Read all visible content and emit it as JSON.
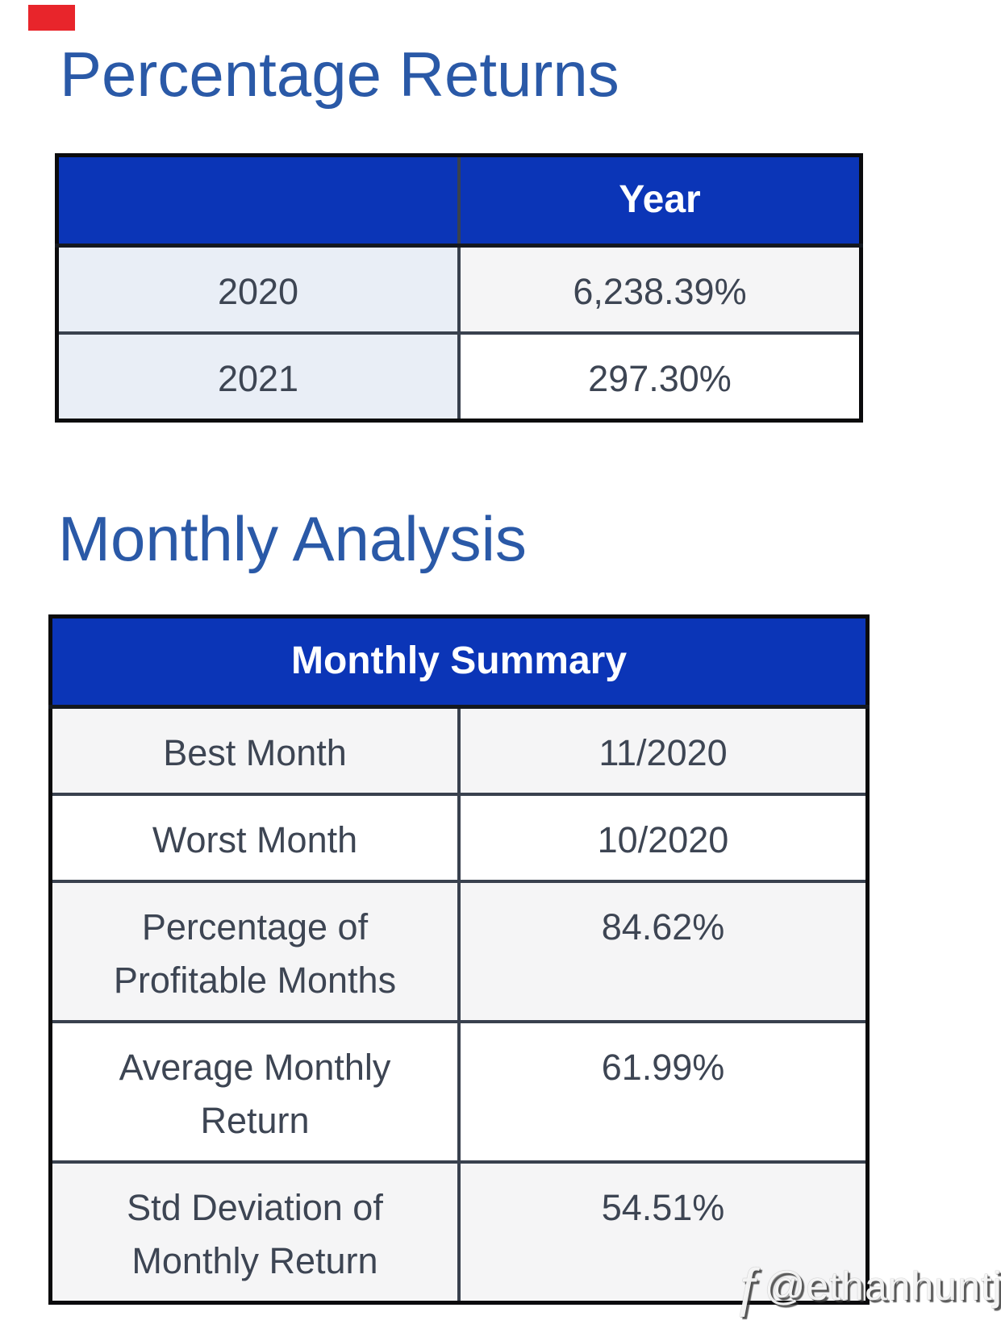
{
  "sections": {
    "percentage_returns": {
      "title": "Percentage Returns",
      "table": {
        "columns": [
          "",
          "Year"
        ],
        "rows": [
          {
            "label": "2020",
            "value": "6,238.39%"
          },
          {
            "label": "2021",
            "value": "297.30%"
          }
        ]
      }
    },
    "monthly_analysis": {
      "title": "Monthly Analysis",
      "table": {
        "header": "Monthly Summary",
        "rows": [
          {
            "label": "Best Month",
            "value": "11/2020"
          },
          {
            "label": "Worst Month",
            "value": "10/2020"
          },
          {
            "label": "Percentage of Profitable Months",
            "value": "84.62%"
          },
          {
            "label": "Average Monthly Return",
            "value": "61.99%"
          },
          {
            "label": "Std Deviation of Monthly Return",
            "value": "54.51%"
          }
        ]
      }
    }
  },
  "watermark": {
    "logo_glyph": "ƒ",
    "handle": "@ethanhuntj"
  },
  "colors": {
    "heading_text": "#2a59a7",
    "table_header_bg": "#0b35b7",
    "table_header_text": "#ffffff",
    "inner_border": "#39414e",
    "outer_border": "#0b0b0d",
    "label_column_tint": "#e9eef6",
    "row_stripe": "#f5f5f6",
    "cell_text": "#3d4553",
    "top_left_marker": "#e8252b"
  }
}
